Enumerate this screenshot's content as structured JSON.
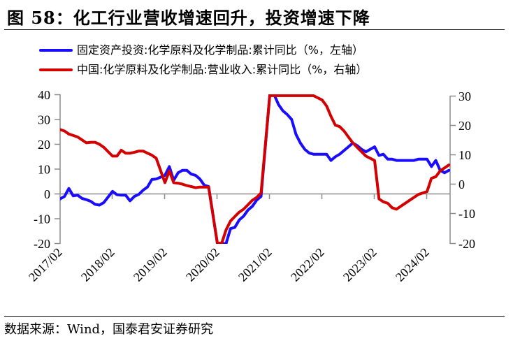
{
  "title": "图 58：化工行业营收增速回升，投资增速下降",
  "legend": [
    {
      "label": "固定资产投资:化学原料及化学制品:累计同比（%，左轴）",
      "color": "#1a0dff",
      "icon": "blue-line-swatch"
    },
    {
      "label": "中国:化学原料及化学制品:营业收入:累计同比（%，右轴）",
      "color": "#d40000",
      "icon": "red-line-swatch"
    }
  ],
  "source": "数据来源：Wind，国泰君安证券研究",
  "axes": {
    "left": {
      "ticks": [
        "40",
        "30",
        "20",
        "10",
        "0",
        "-10",
        "-20"
      ]
    },
    "right": {
      "ticks": [
        "30",
        "20",
        "10",
        "0",
        "-10",
        "-20"
      ]
    },
    "x": {
      "ticks": [
        "2017/02",
        "2018/02",
        "2019/02",
        "2020/02",
        "2021/02",
        "2022/02",
        "2023/02",
        "2024/02"
      ]
    }
  },
  "chart_data": {
    "type": "line",
    "title": "化工行业营收增速回升，投资增速下降",
    "xlabel": "",
    "ylabel_left": "固定资产投资:化学原料及化学制品:累计同比（%）",
    "ylabel_right": "营业收入:累计同比（%）",
    "ylim_left": [
      -20,
      40
    ],
    "ylim_right": [
      -20,
      30
    ],
    "legend_position": "top",
    "grid": false,
    "x_tick_labels": [
      "2017/02",
      "2018/02",
      "2019/02",
      "2020/02",
      "2021/02",
      "2022/02",
      "2023/02",
      "2024/02"
    ],
    "series": [
      {
        "name": "固定资产投资:化学原料及化学制品:累计同比（%，左轴）",
        "axis": "left",
        "color": "#1a0dff",
        "points": [
          [
            "2017/02",
            -2.0
          ],
          [
            "2017/03",
            -1.0
          ],
          [
            "2017/04",
            2.2
          ],
          [
            "2017/05",
            -0.8
          ],
          [
            "2017/06",
            -0.5
          ],
          [
            "2017/07",
            -1.8
          ],
          [
            "2017/08",
            -2.3
          ],
          [
            "2017/09",
            -3.0
          ],
          [
            "2017/10",
            -4.2
          ],
          [
            "2017/11",
            -4.5
          ],
          [
            "2017/12",
            -3.5
          ],
          [
            "2018/02",
            1.0
          ],
          [
            "2018/03",
            -0.3
          ],
          [
            "2018/04",
            -0.5
          ],
          [
            "2018/05",
            -0.5
          ],
          [
            "2018/06",
            -2.8
          ],
          [
            "2018/07",
            -1.0
          ],
          [
            "2018/08",
            -0.2
          ],
          [
            "2018/09",
            1.5
          ],
          [
            "2018/10",
            2.8
          ],
          [
            "2018/11",
            5.8
          ],
          [
            "2018/12",
            6.0
          ],
          [
            "2019/02",
            7.5
          ],
          [
            "2019/03",
            11.0
          ],
          [
            "2019/04",
            5.5
          ],
          [
            "2019/05",
            8.5
          ],
          [
            "2019/06",
            9.5
          ],
          [
            "2019/07",
            9.5
          ],
          [
            "2019/08",
            8.0
          ],
          [
            "2019/09",
            7.5
          ],
          [
            "2019/10",
            6.0
          ],
          [
            "2019/11",
            3.5
          ],
          [
            "2019/12",
            3.0
          ],
          [
            "2020/02",
            -20.0
          ],
          [
            "2020/03",
            -20.0
          ],
          [
            "2020/04",
            -20.0
          ],
          [
            "2020/05",
            -14.0
          ],
          [
            "2020/06",
            -13.5
          ],
          [
            "2020/07",
            -10.5
          ],
          [
            "2020/08",
            -9.0
          ],
          [
            "2020/09",
            -6.5
          ],
          [
            "2020/10",
            -5.0
          ],
          [
            "2020/11",
            -2.5
          ],
          [
            "2020/12",
            -1.0
          ],
          [
            "2021/02",
            40.0
          ],
          [
            "2021/03",
            40.0
          ],
          [
            "2021/04",
            36.0
          ],
          [
            "2021/05",
            33.5
          ],
          [
            "2021/06",
            32.0
          ],
          [
            "2021/07",
            30.0
          ],
          [
            "2021/08",
            24.0
          ],
          [
            "2021/09",
            20.5
          ],
          [
            "2021/10",
            18.0
          ],
          [
            "2021/11",
            16.5
          ],
          [
            "2021/12",
            16.0
          ],
          [
            "2022/02",
            16.0
          ],
          [
            "2022/03",
            16.0
          ],
          [
            "2022/04",
            13.5
          ],
          [
            "2022/05",
            15.0
          ],
          [
            "2022/06",
            16.0
          ],
          [
            "2022/07",
            17.5
          ],
          [
            "2022/08",
            19.0
          ],
          [
            "2022/09",
            20.5
          ],
          [
            "2022/10",
            19.5
          ],
          [
            "2022/11",
            18.0
          ],
          [
            "2022/12",
            17.0
          ],
          [
            "2023/02",
            19.0
          ],
          [
            "2023/03",
            15.5
          ],
          [
            "2023/04",
            16.0
          ],
          [
            "2023/05",
            14.0
          ],
          [
            "2023/06",
            14.0
          ],
          [
            "2023/07",
            13.5
          ],
          [
            "2023/08",
            13.5
          ],
          [
            "2023/09",
            13.5
          ],
          [
            "2023/10",
            13.5
          ],
          [
            "2023/11",
            13.5
          ],
          [
            "2023/12",
            14.0
          ],
          [
            "2024/02",
            14.0
          ],
          [
            "2024/03",
            11.0
          ],
          [
            "2024/04",
            13.5
          ],
          [
            "2024/05",
            9.5
          ],
          [
            "2024/06",
            8.5
          ],
          [
            "2024/07",
            9.5
          ]
        ]
      },
      {
        "name": "中国:化学原料及化学制品:营业收入:累计同比（%，右轴）",
        "axis": "right",
        "color": "#d40000",
        "points": [
          [
            "2017/02",
            18.5
          ],
          [
            "2017/03",
            18.0
          ],
          [
            "2017/04",
            17.0
          ],
          [
            "2017/05",
            16.5
          ],
          [
            "2017/06",
            16.0
          ],
          [
            "2017/07",
            15.0
          ],
          [
            "2017/08",
            14.0
          ],
          [
            "2017/09",
            14.2
          ],
          [
            "2017/10",
            14.2
          ],
          [
            "2017/11",
            13.5
          ],
          [
            "2017/12",
            12.5
          ],
          [
            "2018/02",
            9.5
          ],
          [
            "2018/03",
            9.5
          ],
          [
            "2018/04",
            11.5
          ],
          [
            "2018/05",
            10.5
          ],
          [
            "2018/06",
            10.5
          ],
          [
            "2018/07",
            10.8
          ],
          [
            "2018/08",
            11.2
          ],
          [
            "2018/09",
            11.2
          ],
          [
            "2018/10",
            10.5
          ],
          [
            "2018/11",
            9.8
          ],
          [
            "2018/12",
            8.8
          ],
          [
            "2019/02",
            0.5
          ],
          [
            "2019/03",
            4.5
          ],
          [
            "2019/04",
            0.5
          ],
          [
            "2019/05",
            0.3
          ],
          [
            "2019/06",
            0.0
          ],
          [
            "2019/07",
            -0.5
          ],
          [
            "2019/08",
            -0.8
          ],
          [
            "2019/09",
            -1.2
          ],
          [
            "2019/10",
            -1.0
          ],
          [
            "2019/11",
            -1.0
          ],
          [
            "2019/12",
            -1.0
          ],
          [
            "2020/02",
            -20.0
          ],
          [
            "2020/03",
            -20.0
          ],
          [
            "2020/04",
            -15.5
          ],
          [
            "2020/05",
            -12.5
          ],
          [
            "2020/06",
            -11.0
          ],
          [
            "2020/07",
            -9.5
          ],
          [
            "2020/08",
            -8.5
          ],
          [
            "2020/09",
            -7.0
          ],
          [
            "2020/10",
            -5.5
          ],
          [
            "2020/11",
            -4.5
          ],
          [
            "2020/12",
            -3.0
          ],
          [
            "2021/02",
            30.0
          ],
          [
            "2021/03",
            30.0
          ],
          [
            "2021/04",
            30.0
          ],
          [
            "2021/05",
            30.0
          ],
          [
            "2021/06",
            30.0
          ],
          [
            "2021/07",
            30.0
          ],
          [
            "2021/08",
            30.0
          ],
          [
            "2021/09",
            30.0
          ],
          [
            "2021/10",
            30.0
          ],
          [
            "2021/11",
            30.0
          ],
          [
            "2021/12",
            30.0
          ],
          [
            "2022/02",
            28.5
          ],
          [
            "2022/03",
            26.5
          ],
          [
            "2022/04",
            23.0
          ],
          [
            "2022/05",
            20.0
          ],
          [
            "2022/06",
            19.5
          ],
          [
            "2022/07",
            18.0
          ],
          [
            "2022/08",
            16.0
          ],
          [
            "2022/09",
            14.0
          ],
          [
            "2022/10",
            12.5
          ],
          [
            "2022/11",
            11.0
          ],
          [
            "2022/12",
            9.5
          ],
          [
            "2023/02",
            8.0
          ],
          [
            "2023/03",
            -5.0
          ],
          [
            "2023/04",
            -6.0
          ],
          [
            "2023/05",
            -6.5
          ],
          [
            "2023/06",
            -8.0
          ],
          [
            "2023/07",
            -8.5
          ],
          [
            "2023/08",
            -7.5
          ],
          [
            "2023/09",
            -6.5
          ],
          [
            "2023/10",
            -5.5
          ],
          [
            "2023/11",
            -4.5
          ],
          [
            "2023/12",
            -3.5
          ],
          [
            "2024/02",
            -2.5
          ],
          [
            "2024/03",
            2.0
          ],
          [
            "2024/04",
            2.5
          ],
          [
            "2024/05",
            4.5
          ],
          [
            "2024/06",
            5.5
          ],
          [
            "2024/07",
            6.5
          ]
        ]
      }
    ]
  }
}
